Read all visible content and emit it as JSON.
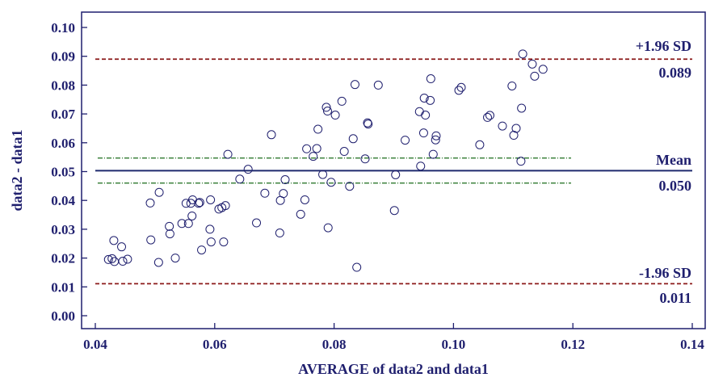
{
  "chart_data": {
    "type": "scatter",
    "xlabel": "AVERAGE of data2 and data1",
    "ylabel": "data2 - data1",
    "xlim": [
      0.04,
      0.14
    ],
    "ylim": [
      0.0,
      0.1
    ],
    "xticks": [
      "0.04",
      "0.06",
      "0.08",
      "0.10",
      "0.12",
      "0.14"
    ],
    "yticks": [
      "0.00",
      "0.01",
      "0.02",
      "0.03",
      "0.04",
      "0.05",
      "0.06",
      "0.07",
      "0.08",
      "0.09",
      "0.10"
    ],
    "reference_lines": {
      "upper": {
        "label": "+1.96 SD",
        "value_label": "0.089",
        "value": 0.089,
        "color": "#8b1a1a"
      },
      "mean": {
        "label": "Mean",
        "value_label": "0.050",
        "value": 0.0503,
        "color": "#1f2a6e"
      },
      "lower": {
        "label": "-1.96 SD",
        "value_label": "0.011",
        "value": 0.0111,
        "color": "#8b1a1a"
      },
      "mean_ci_upper": {
        "value": 0.0547,
        "x_range": [
          0.0404,
          0.1197
        ],
        "color": "#1a6b1a"
      },
      "mean_ci_lower": {
        "value": 0.046,
        "x_range": [
          0.0404,
          0.1197
        ],
        "color": "#1a6b1a"
      }
    },
    "marker_color": "#1f1f6e",
    "grid": false,
    "points": [
      [
        0.0422,
        0.0195
      ],
      [
        0.0428,
        0.0198
      ],
      [
        0.0431,
        0.0261
      ],
      [
        0.0432,
        0.0188
      ],
      [
        0.0444,
        0.0239
      ],
      [
        0.0446,
        0.0189
      ],
      [
        0.0454,
        0.0196
      ],
      [
        0.0492,
        0.0391
      ],
      [
        0.0493,
        0.0263
      ],
      [
        0.0506,
        0.0185
      ],
      [
        0.0507,
        0.0428
      ],
      [
        0.0524,
        0.031
      ],
      [
        0.0525,
        0.0284
      ],
      [
        0.0534,
        0.02
      ],
      [
        0.0545,
        0.032
      ],
      [
        0.0552,
        0.039
      ],
      [
        0.0556,
        0.032
      ],
      [
        0.056,
        0.039
      ],
      [
        0.0562,
        0.0346
      ],
      [
        0.0563,
        0.0402
      ],
      [
        0.0573,
        0.039
      ],
      [
        0.0575,
        0.0393
      ],
      [
        0.0578,
        0.0228
      ],
      [
        0.0592,
        0.03
      ],
      [
        0.0593,
        0.0402
      ],
      [
        0.0594,
        0.0256
      ],
      [
        0.0607,
        0.037
      ],
      [
        0.0612,
        0.0375
      ],
      [
        0.0615,
        0.0256
      ],
      [
        0.0618,
        0.0382
      ],
      [
        0.0622,
        0.056
      ],
      [
        0.0642,
        0.0474
      ],
      [
        0.0656,
        0.0508
      ],
      [
        0.067,
        0.0322
      ],
      [
        0.0684,
        0.0425
      ],
      [
        0.0695,
        0.0628
      ],
      [
        0.0709,
        0.0287
      ],
      [
        0.071,
        0.04
      ],
      [
        0.0715,
        0.0424
      ],
      [
        0.0718,
        0.0472
      ],
      [
        0.0744,
        0.0352
      ],
      [
        0.0751,
        0.0402
      ],
      [
        0.0754,
        0.0579
      ],
      [
        0.0765,
        0.0553
      ],
      [
        0.0771,
        0.058
      ],
      [
        0.0773,
        0.0647
      ],
      [
        0.0781,
        0.049
      ],
      [
        0.0787,
        0.0723
      ],
      [
        0.0789,
        0.071
      ],
      [
        0.079,
        0.0305
      ],
      [
        0.0795,
        0.0463
      ],
      [
        0.0802,
        0.0696
      ],
      [
        0.0813,
        0.0744
      ],
      [
        0.0817,
        0.057
      ],
      [
        0.0826,
        0.0449
      ],
      [
        0.0832,
        0.0614
      ],
      [
        0.0835,
        0.0802
      ],
      [
        0.0838,
        0.0168
      ],
      [
        0.0852,
        0.0544
      ],
      [
        0.0856,
        0.0669
      ],
      [
        0.0857,
        0.0665
      ],
      [
        0.0874,
        0.08
      ],
      [
        0.0903,
        0.0489
      ],
      [
        0.0901,
        0.0365
      ],
      [
        0.0919,
        0.0609
      ],
      [
        0.0943,
        0.0708
      ],
      [
        0.0945,
        0.0519
      ],
      [
        0.095,
        0.0634
      ],
      [
        0.0951,
        0.0755
      ],
      [
        0.0953,
        0.0696
      ],
      [
        0.0961,
        0.0747
      ],
      [
        0.0962,
        0.0822
      ],
      [
        0.0966,
        0.056
      ],
      [
        0.097,
        0.061
      ],
      [
        0.0971,
        0.0624
      ],
      [
        0.1009,
        0.0782
      ],
      [
        0.1013,
        0.0792
      ],
      [
        0.1044,
        0.0593
      ],
      [
        0.1057,
        0.0688
      ],
      [
        0.1061,
        0.0695
      ],
      [
        0.1082,
        0.0658
      ],
      [
        0.1098,
        0.0797
      ],
      [
        0.1101,
        0.0626
      ],
      [
        0.1105,
        0.065
      ],
      [
        0.1113,
        0.0536
      ],
      [
        0.1114,
        0.072
      ],
      [
        0.1116,
        0.0908
      ],
      [
        0.1132,
        0.0873
      ],
      [
        0.1136,
        0.0831
      ],
      [
        0.115,
        0.0855
      ]
    ]
  }
}
